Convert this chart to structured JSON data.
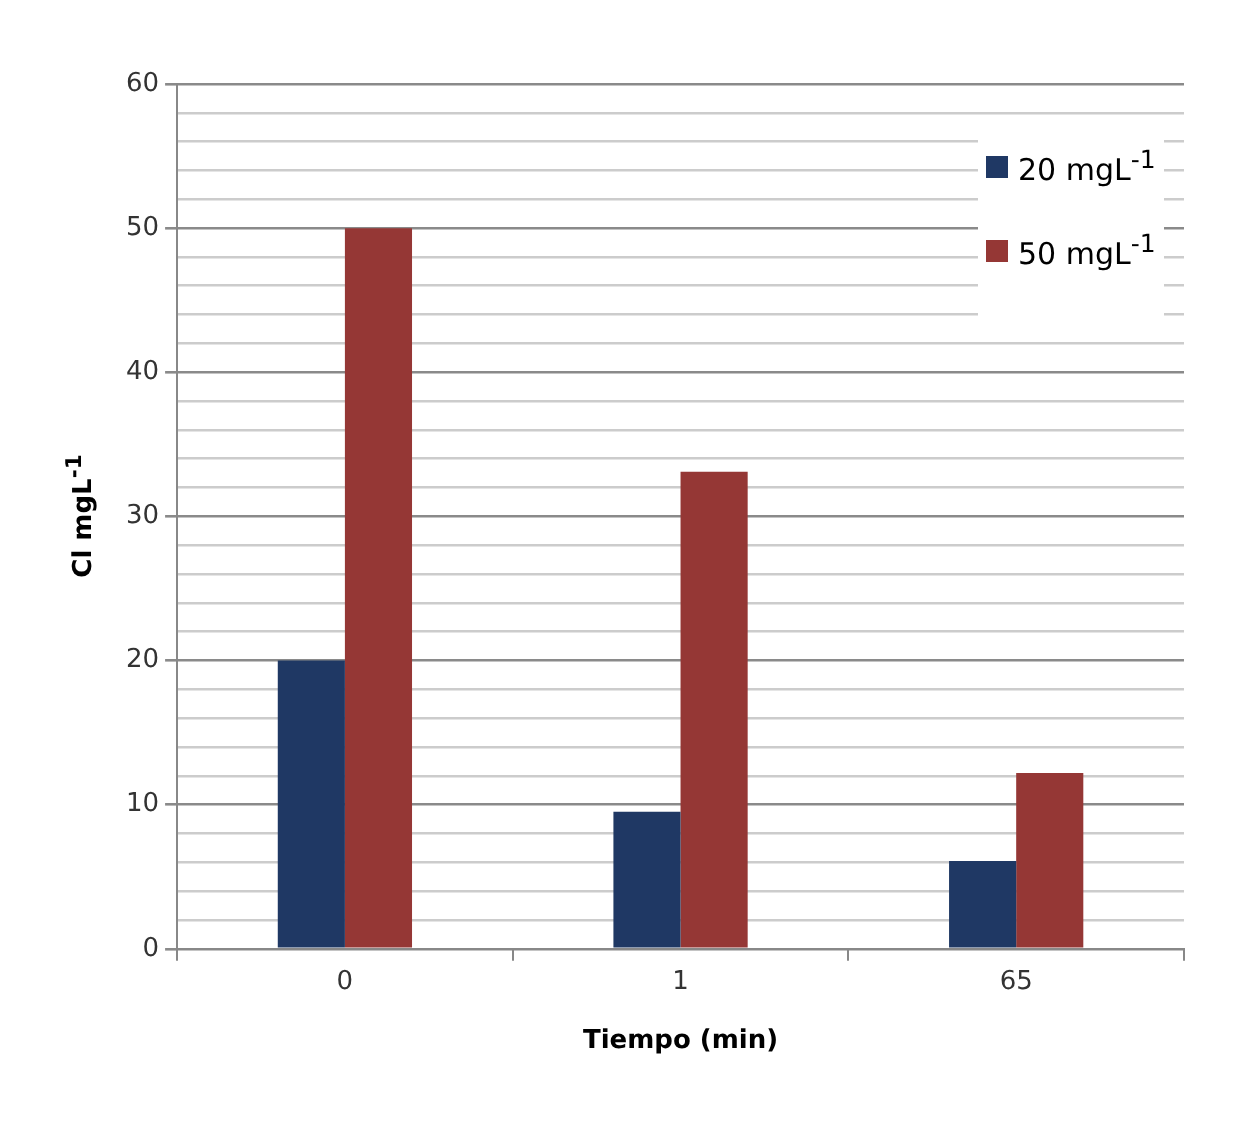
{
  "chart_data": {
    "type": "bar",
    "xlabel": "Tiempo (min)",
    "ylabel": "Cl mgL$^{-1}$",
    "categories": [
      "0",
      "1",
      "65"
    ],
    "series": [
      {
        "name": "20 mgL$^{-1}$",
        "color": "#1f3864",
        "values": [
          20,
          9.5,
          6.1
        ]
      },
      {
        "name": "50 mgL$^{-1}$",
        "color": "#953735",
        "values": [
          50,
          33.1,
          12.2
        ]
      }
    ],
    "ylim": [
      0,
      60
    ],
    "yticks": [
      0,
      {
        "value": 2,
        "label": null
      },
      {
        "value": 4,
        "label": null
      },
      {
        "value": 6,
        "label": null
      },
      {
        "value": 8,
        "label": null
      },
      10,
      {
        "value": 12,
        "label": null
      },
      {
        "value": 14,
        "label": null
      },
      {
        "value": 16,
        "label": null
      },
      {
        "value": 18,
        "label": null
      },
      20,
      {
        "value": 22,
        "label": null
      },
      {
        "value": 24,
        "label": null
      },
      {
        "value": 26,
        "label": null
      },
      {
        "value": 28,
        "label": null
      },
      30,
      {
        "value": 32,
        "label": null
      },
      {
        "value": 34,
        "label": null
      },
      {
        "value": 36,
        "label": null
      },
      {
        "value": 38,
        "label": null
      },
      40,
      {
        "value": 42,
        "label": null
      },
      {
        "value": 44,
        "label": null
      },
      {
        "value": 46,
        "label": null
      },
      {
        "value": 48,
        "label": null
      },
      50,
      {
        "value": 52,
        "label": null
      },
      {
        "value": 54,
        "label": null
      },
      {
        "value": 56,
        "label": null
      },
      {
        "value": 58,
        "label": null
      },
      60
    ],
    "grid": true,
    "legend": "top right"
  }
}
